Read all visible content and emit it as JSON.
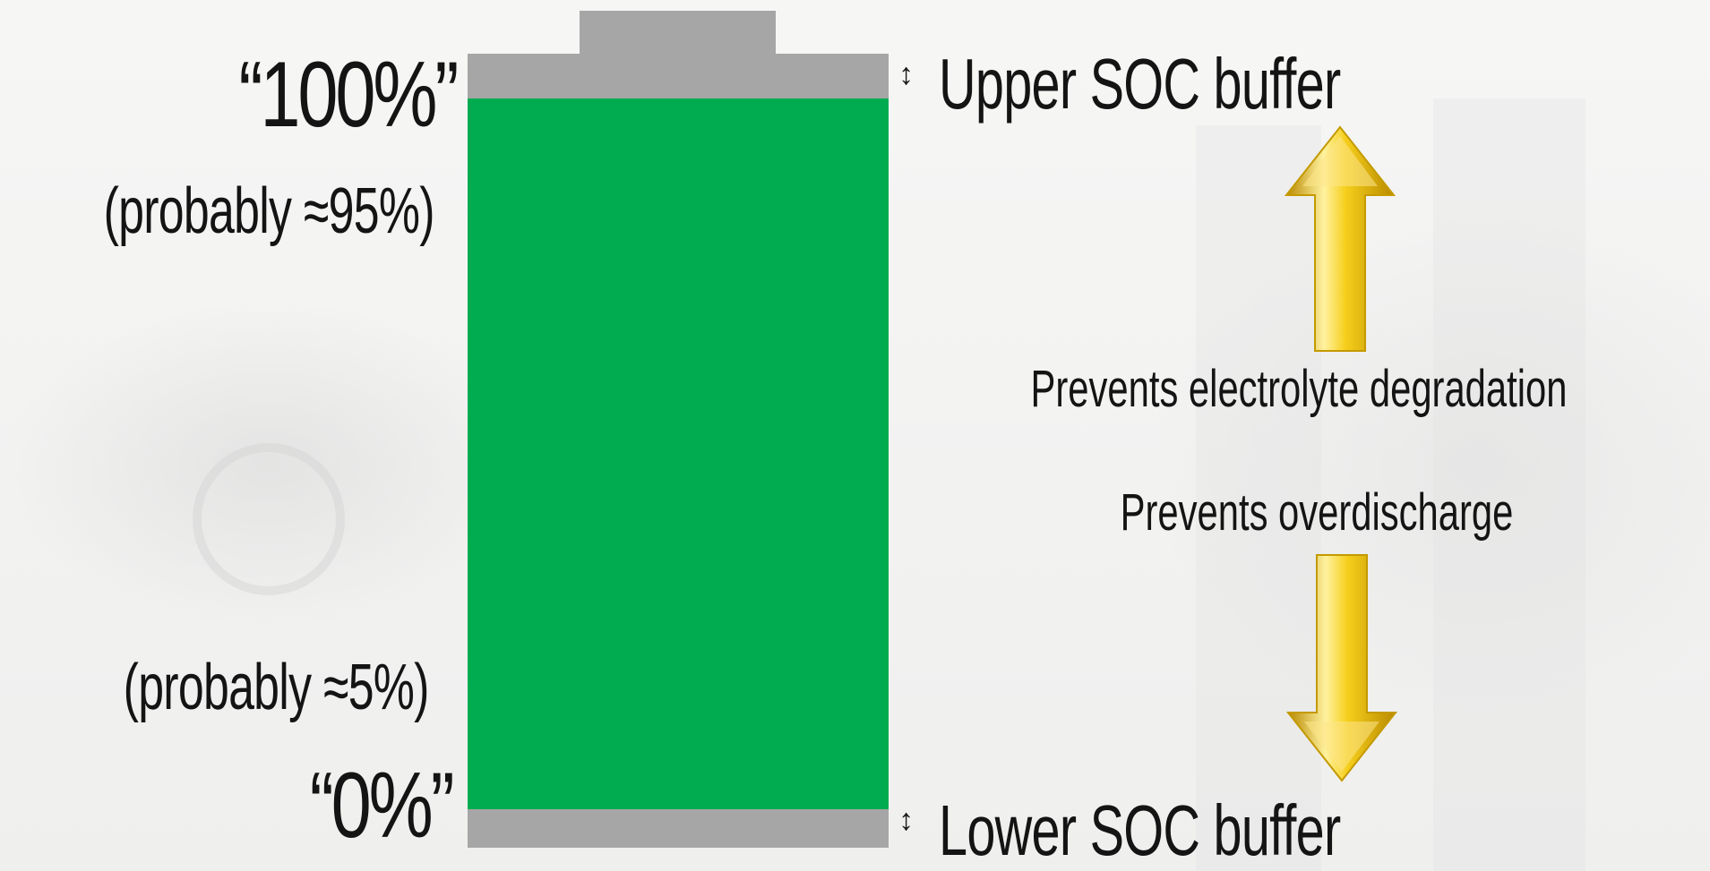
{
  "labels": {
    "top_quote": "“100%”",
    "top_note": "(probably ≈95%)",
    "bottom_note": "(probably ≈5%)",
    "bottom_quote": "“0%”",
    "upper_buffer": "Upper SOC buffer",
    "lower_buffer": "Lower SOC buffer",
    "prevents_electrolyte": "Prevents electrolyte degradation",
    "prevents_overdischarge": "Prevents overdischarge"
  },
  "colors": {
    "charge_fill": "#00ac4f",
    "buffer_gray": "#a6a6a6",
    "arrow_gold": "#f2c20a"
  },
  "icons": {
    "upper_marker": "up-down-arrow-icon",
    "lower_marker": "up-down-arrow-icon",
    "upper_arrow": "arrow-up-icon",
    "lower_arrow": "arrow-down-icon"
  }
}
